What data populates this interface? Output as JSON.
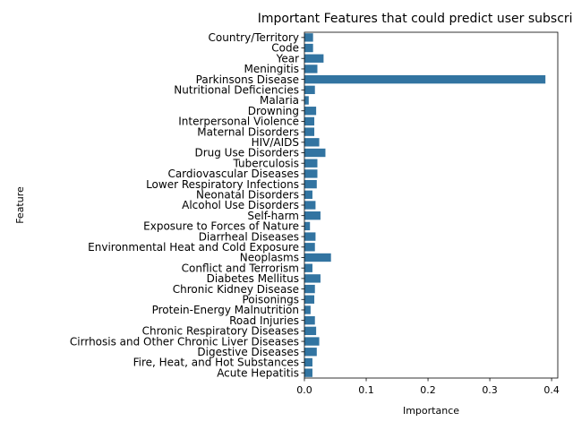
{
  "chart_data": {
    "type": "bar",
    "orientation": "horizontal",
    "title": "Important Features that could predict user subscription",
    "xlabel": "Importance",
    "ylabel": "Feature",
    "xlim": [
      0,
      0.41
    ],
    "xticks": [
      "0.0",
      "0.1",
      "0.2",
      "0.3",
      "0.4"
    ],
    "xtick_values": [
      0,
      0.1,
      0.2,
      0.3,
      0.4
    ],
    "grid": false,
    "bar_color": "#3274a1",
    "categories": [
      "Country/Territory",
      "Code",
      "Year",
      "Meningitis",
      "Parkinsons Disease",
      "Nutritional Deficiencies",
      "Malaria",
      "Drowning",
      "Interpersonal Violence",
      "Maternal Disorders",
      "HIV/AIDS",
      "Drug Use Disorders",
      "Tuberculosis",
      "Cardiovascular Diseases",
      "Lower Respiratory Infections",
      "Neonatal Disorders",
      "Alcohol Use Disorders",
      "Self-harm",
      "Exposure to Forces of Nature",
      "Diarrheal Diseases",
      "Environmental Heat and Cold Exposure",
      "Neoplasms",
      "Conflict and Terrorism",
      "Diabetes Mellitus",
      "Chronic Kidney Disease",
      "Poisonings",
      "Protein-Energy Malnutrition",
      "Road Injuries",
      "Chronic Respiratory Diseases",
      "Cirrhosis and Other Chronic Liver Diseases",
      "Digestive Diseases",
      "Fire, Heat, and Hot Substances",
      "Acute Hepatitis"
    ],
    "values": [
      0.014,
      0.014,
      0.031,
      0.021,
      0.39,
      0.017,
      0.007,
      0.019,
      0.016,
      0.016,
      0.024,
      0.034,
      0.021,
      0.021,
      0.02,
      0.013,
      0.018,
      0.026,
      0.009,
      0.018,
      0.017,
      0.043,
      0.013,
      0.026,
      0.017,
      0.016,
      0.01,
      0.017,
      0.019,
      0.024,
      0.02,
      0.013,
      0.013
    ]
  }
}
